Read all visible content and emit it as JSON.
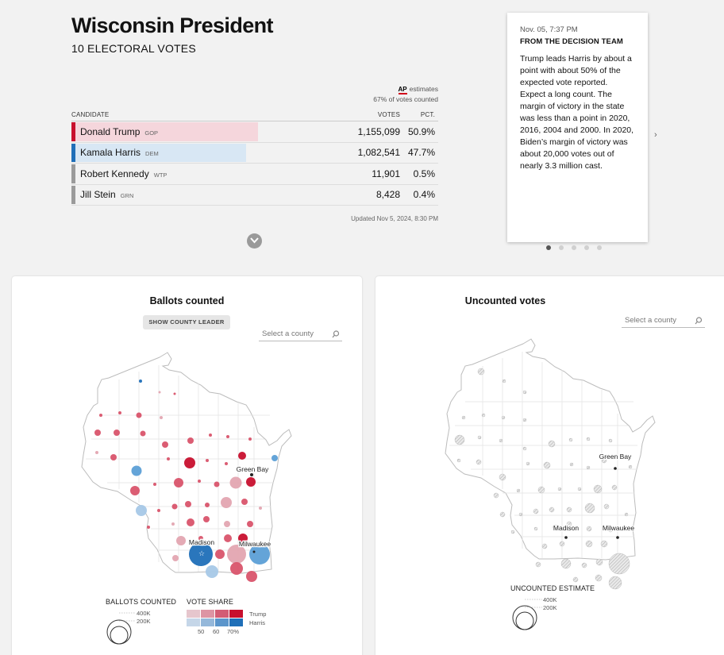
{
  "header": {
    "title": "Wisconsin President",
    "subtitle": "10 ELECTORAL VOTES"
  },
  "ap_note": {
    "logo": "AP",
    "estimates": "estimates",
    "counted": "67% of votes counted"
  },
  "table": {
    "col_candidate": "CANDIDATE",
    "col_votes": "VOTES",
    "col_pct": "PCT.",
    "rows": [
      {
        "name": "Donald Trump",
        "party": "GOP",
        "votes": "1,155,099",
        "pct": "50.9%",
        "share": 0.509
      },
      {
        "name": "Kamala Harris",
        "party": "DEM",
        "votes": "1,082,541",
        "pct": "47.7%",
        "share": 0.477
      },
      {
        "name": "Robert Kennedy",
        "party": "WTP",
        "votes": "11,901",
        "pct": "0.5%",
        "share": 0.005
      },
      {
        "name": "Jill Stein",
        "party": "GRN",
        "votes": "8,428",
        "pct": "0.4%",
        "share": 0.004
      }
    ],
    "updated": "Updated Nov 5, 2024, 8:30 PM"
  },
  "colors": {
    "gop": "#c8102e",
    "gop_light": "#f5d6dc",
    "dem": "#1f6fb8",
    "dem_light": "#d8e7f4",
    "other": "#9b9b9b"
  },
  "card": {
    "time": "Nov. 05, 7:37 PM",
    "team": "FROM THE DECISION TEAM",
    "body": "Trump leads Harris by about a point with about 50% of the expected vote reported. Expect a long count. The margin of victory in the state was less than a point in 2020, 2016, 2004 and 2000. In 2020, Biden’s margin of victory was about 20,000 votes out of nearly 3.3 million cast.",
    "next_icon": "chevron-right-icon",
    "active_dot": 0,
    "dot_count": 5
  },
  "left_panel": {
    "title": "Ballots counted",
    "button": "SHOW COUNTY LEADER",
    "search_placeholder": "Select a county",
    "cities": {
      "green_bay": "Green Bay",
      "madison": "Madison",
      "milwaukee": "Milwaukee"
    },
    "legend": {
      "ballots_title": "BALLOTS COUNTED",
      "size_large": "400K",
      "size_small": "200K",
      "share_title": "VOTE SHARE",
      "trump": "Trump",
      "harris": "Harris",
      "ticks": [
        "50",
        "60",
        "70%"
      ]
    }
  },
  "right_panel": {
    "title": "Uncounted votes",
    "search_placeholder": "Select a county",
    "cities": {
      "green_bay": "Green Bay",
      "madison": "Madison",
      "milwaukee": "Milwaukee"
    },
    "legend": {
      "title": "UNCOUNTED ESTIMATE",
      "size_large": "400K",
      "size_small": "200K"
    }
  }
}
